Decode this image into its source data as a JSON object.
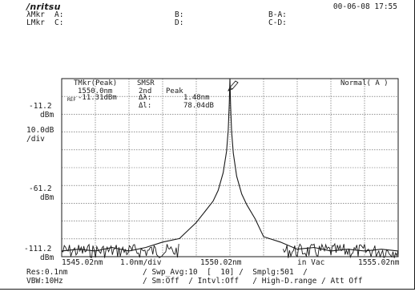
{
  "header": {
    "brand": "/nritsu",
    "datetime": "00-06-08 17:55"
  },
  "markers": {
    "lambda_label": "λMkr",
    "level_label": "LMkr",
    "a": "A:",
    "b": "B:",
    "c": "C:",
    "d": "D:",
    "ba": "B-A:",
    "cd": "C-D:"
  },
  "overlay": {
    "tmkr_title": "TMkr(Peak)",
    "tmkr_wavelength": "1550.0nm",
    "tmkr_level": "-11.31dBm",
    "ref_tag": "REF",
    "smsr_title": "SMSR",
    "smsr_mode": "2nd",
    "smsr_value_title": "Peak",
    "delta_lambda_label": "Δλ:",
    "delta_lambda_value": "1.48nm",
    "delta_level_label": "Δl:",
    "delta_level_value": "78.04dB",
    "mode_label": "Normal( A )"
  },
  "y_axis": {
    "top_value": "-11.2",
    "top_unit": "dBm",
    "scale_value": "10.0dB",
    "scale_unit": "/div",
    "mid_value": "-61.2",
    "mid_unit": "dBm",
    "bottom_value": "-111.2",
    "bottom_unit": "dBm"
  },
  "x_axis": {
    "start": "1545.02nm",
    "span": "1.0nm/div",
    "center": "1550.02nm",
    "medium": "in Vac",
    "stop": "1555.02nm"
  },
  "footer": {
    "res": "Res:0.1nm",
    "vbw": "VBW:10Hz",
    "line1": "/ Swp_Avg:10  [  10] /  Smplg:501  /",
    "line2": "/ Sm:Off  / Intvl:Off   / High-D.range / Att Off"
  },
  "chart_data": {
    "type": "line",
    "x_start_nm": 1545.02,
    "x_stop_nm": 1555.02,
    "x_center_nm": 1550.02,
    "ref_level_dbm": -11.2,
    "scale_db_per_div": 10.0,
    "y_bottom_dbm": -111.2,
    "grid": true,
    "series": [
      {
        "x": [
          1545.02,
          1545.52,
          1546.02,
          1546.52,
          1547.02,
          1547.52,
          1548.02,
          1548.52,
          1549.02,
          1549.27,
          1549.52,
          1549.67,
          1549.82,
          1549.92,
          1549.97,
          1550.0,
          1550.02,
          1550.04,
          1550.07,
          1550.12,
          1550.22,
          1550.37,
          1550.52,
          1550.77,
          1551.02,
          1551.52,
          1552.02,
          1552.52,
          1553.02,
          1553.52,
          1554.02,
          1554.52,
          1555.02
        ],
        "y": [
          -108,
          -107,
          -108,
          -106,
          -108,
          -106,
          -103,
          -101,
          -92,
          -86,
          -80,
          -74,
          -64,
          -52,
          -40,
          -25,
          -11.3,
          -26,
          -41,
          -53,
          -66,
          -76,
          -82,
          -90,
          -100,
          -103,
          -107,
          -106,
          -108,
          -107,
          -108,
          -107,
          -108
        ]
      }
    ]
  }
}
